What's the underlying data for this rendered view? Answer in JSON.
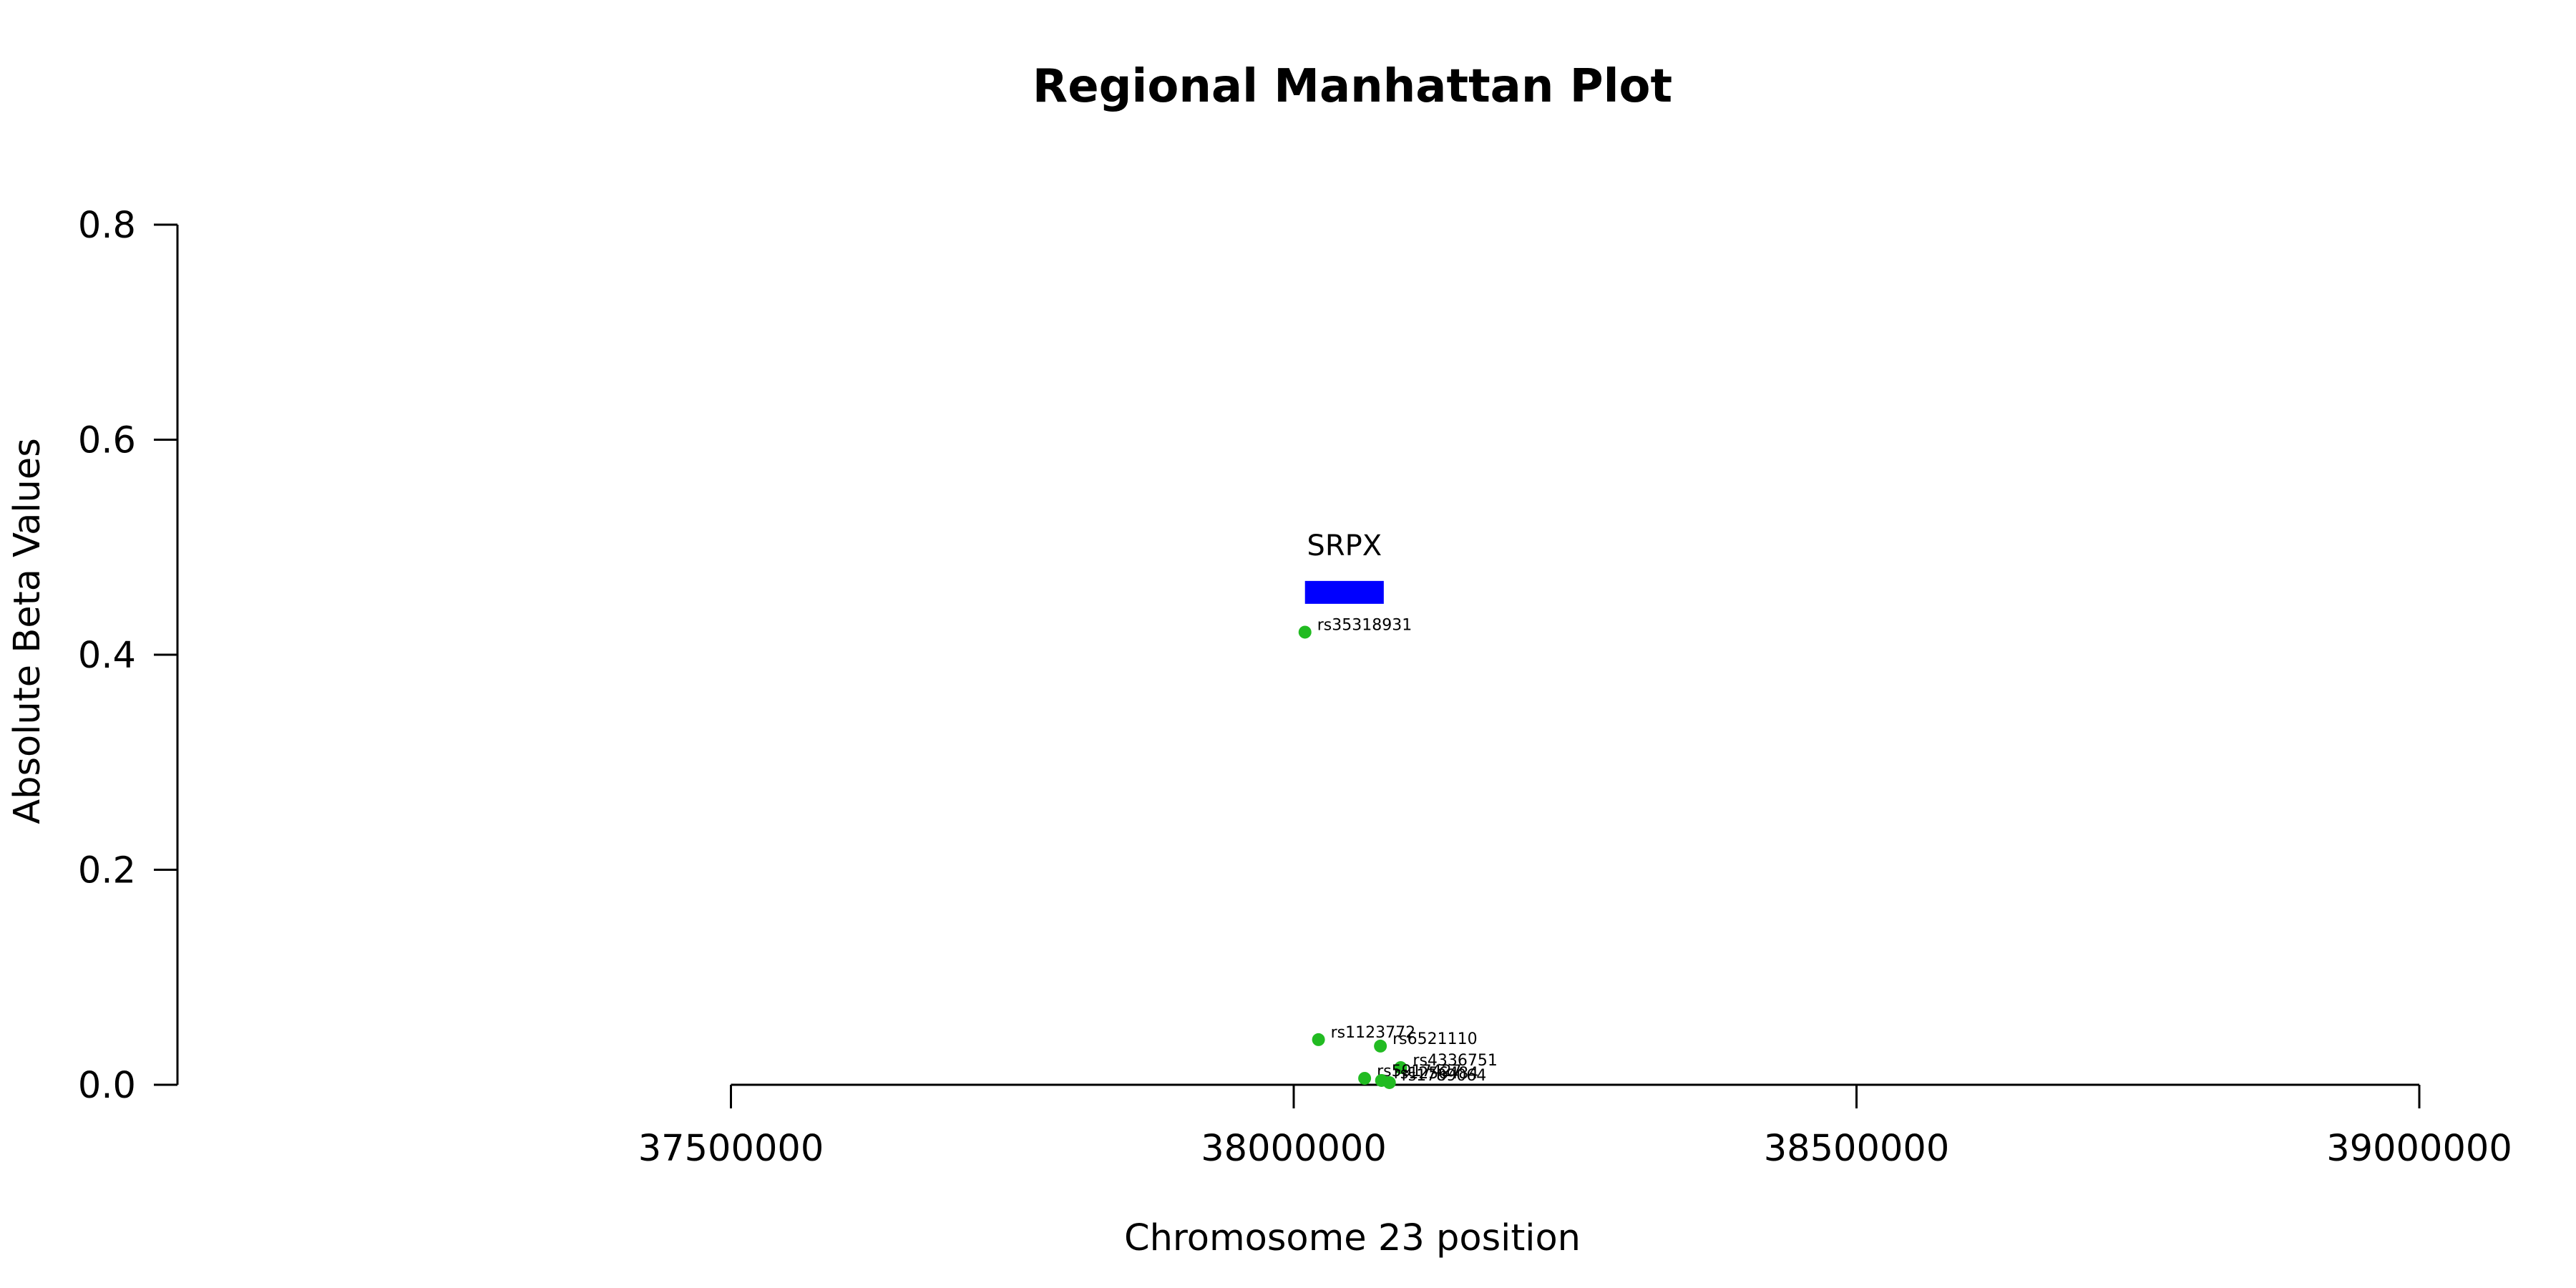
{
  "chart_data": {
    "type": "scatter",
    "title": "Regional Manhattan Plot",
    "xlabel": "Chromosome 23 position",
    "ylabel": "Absolute Beta Values",
    "xlim": [
      37000000,
      39000000
    ],
    "ylim": [
      0,
      0.8
    ],
    "x_ticks": [
      37500000,
      38000000,
      38500000,
      39000000
    ],
    "x_tick_labels": [
      "37500000",
      "38000000",
      "38500000",
      "39000000"
    ],
    "y_ticks": [
      0,
      0.2,
      0.4,
      0.6,
      0.8
    ],
    "y_tick_labels": [
      "0.0",
      "0.2",
      "0.4",
      "0.6",
      "0.8"
    ],
    "point_color": "#22bb22",
    "genes": [
      {
        "name": "SRPX",
        "start": 38010000,
        "end": 38080000,
        "y": 0.458,
        "color": "#0000ff"
      }
    ],
    "points": [
      {
        "snp": "rs35318931",
        "x": 38010000,
        "y": 0.421
      },
      {
        "snp": "rs1123772",
        "x": 38022000,
        "y": 0.042
      },
      {
        "snp": "rs6521110",
        "x": 38077000,
        "y": 0.036
      },
      {
        "snp": "rs4336751",
        "x": 38095000,
        "y": 0.016
      },
      {
        "snp": "rs5917427",
        "x": 38063000,
        "y": 0.006
      },
      {
        "snp": "rs1256484",
        "x": 38078000,
        "y": 0.004
      },
      {
        "snp": "rs1789064",
        "x": 38085000,
        "y": 0.002
      }
    ]
  }
}
